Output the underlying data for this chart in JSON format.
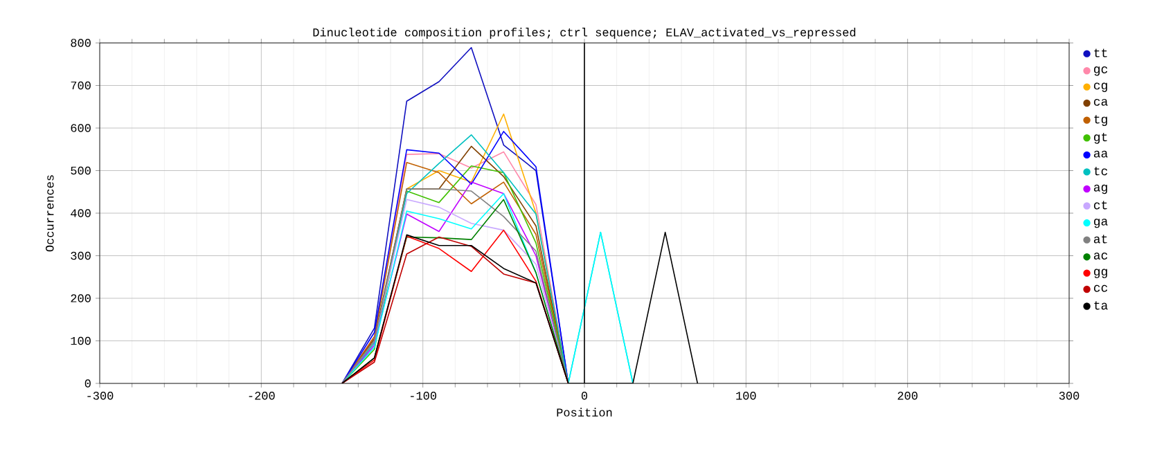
{
  "chart_data": {
    "type": "line",
    "title": "Dinucleotide composition profiles; ctrl sequence; ELAV_activated_vs_repressed",
    "xlabel": "Position",
    "ylabel": "Occurrences",
    "x": [
      -150,
      -130,
      -110,
      -90,
      -70,
      -50,
      -30,
      -10,
      10,
      30,
      50,
      70
    ],
    "series": [
      {
        "name": "tt",
        "color": "#1010c0",
        "values": [
          0,
          130,
          663,
          709,
          789,
          560,
          500,
          0,
          null,
          null,
          null,
          null
        ]
      },
      {
        "name": "gc",
        "color": "#ff88aa",
        "values": [
          0,
          110,
          538,
          540,
          506,
          544,
          420,
          0,
          null,
          null,
          null,
          null
        ]
      },
      {
        "name": "cg",
        "color": "#ffb000",
        "values": [
          0,
          100,
          457,
          500,
          473,
          633,
          400,
          0,
          null,
          null,
          null,
          null
        ]
      },
      {
        "name": "ca",
        "color": "#804000",
        "values": [
          0,
          105,
          457,
          457,
          557,
          486,
          370,
          0,
          null,
          null,
          null,
          null
        ]
      },
      {
        "name": "tg",
        "color": "#c06000",
        "values": [
          0,
          110,
          519,
          495,
          422,
          473,
          350,
          0,
          null,
          null,
          null,
          null
        ]
      },
      {
        "name": "gt",
        "color": "#40c000",
        "values": [
          0,
          80,
          452,
          425,
          511,
          495,
          330,
          0,
          null,
          null,
          null,
          null
        ]
      },
      {
        "name": "aa",
        "color": "#0000ff",
        "values": [
          0,
          120,
          549,
          541,
          468,
          592,
          509,
          0,
          null,
          null,
          null,
          null
        ]
      },
      {
        "name": "tc",
        "color": "#00c0c0",
        "values": [
          0,
          95,
          446,
          517,
          584,
          495,
          398,
          0,
          355,
          0,
          null,
          null
        ]
      },
      {
        "name": "ag",
        "color": "#c000ff",
        "values": [
          0,
          90,
          398,
          357,
          473,
          446,
          300,
          0,
          null,
          null,
          null,
          null
        ]
      },
      {
        "name": "ct",
        "color": "#c8a8ff",
        "values": [
          0,
          100,
          432,
          414,
          376,
          360,
          280,
          0,
          null,
          null,
          null,
          null
        ]
      },
      {
        "name": "ga",
        "color": "#00ffff",
        "values": [
          0,
          85,
          405,
          387,
          363,
          446,
          260,
          0,
          355,
          0,
          null,
          null
        ]
      },
      {
        "name": "at",
        "color": "#808080",
        "values": [
          0,
          100,
          457,
          457,
          452,
          392,
          311,
          0,
          null,
          null,
          null,
          null
        ]
      },
      {
        "name": "ac",
        "color": "#008000",
        "values": [
          0,
          60,
          344,
          342,
          338,
          432,
          260,
          0,
          null,
          null,
          null,
          null
        ]
      },
      {
        "name": "gg",
        "color": "#ff0000",
        "values": [
          0,
          55,
          346,
          317,
          263,
          360,
          240,
          0,
          null,
          null,
          null,
          null
        ]
      },
      {
        "name": "cc",
        "color": "#c00000",
        "values": [
          0,
          50,
          304,
          344,
          322,
          257,
          236,
          0,
          null,
          null,
          null,
          null
        ]
      },
      {
        "name": "ta",
        "color": "#000000",
        "values": [
          0,
          60,
          349,
          324,
          324,
          270,
          236,
          0,
          null,
          0,
          355,
          0
        ]
      }
    ],
    "xlim": [
      -300,
      300
    ],
    "ylim": [
      0,
      800
    ],
    "xticks": [
      -300,
      -200,
      -100,
      0,
      100,
      200,
      300
    ],
    "yticks": [
      0,
      100,
      200,
      300,
      400,
      500,
      600,
      700,
      800
    ],
    "ref_lines": [
      {
        "axis": "x",
        "value": 0,
        "color": "#000000"
      }
    ],
    "grid": true,
    "legend": "top right",
    "marker": "none",
    "line_style": "solid"
  }
}
